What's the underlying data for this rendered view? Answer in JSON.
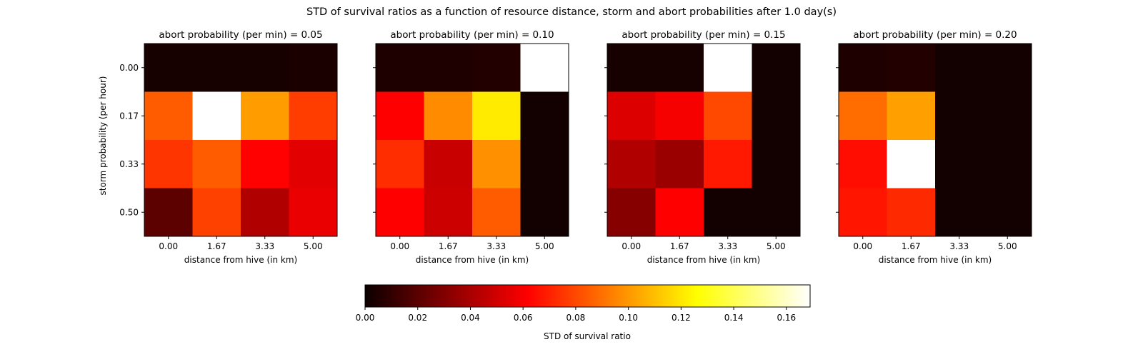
{
  "chart_data": {
    "type": "heatmap",
    "title": "STD of survival ratios as a function of resource distance, storm and abort probabilities after 1.0 day(s)",
    "xlabel": "distance from hive (in km)",
    "ylabel": "storm probability (per hour)",
    "x": [
      "0.00",
      "1.67",
      "3.33",
      "5.00"
    ],
    "y": [
      "0.00",
      "0.17",
      "0.33",
      "0.50"
    ],
    "colormap": "hot",
    "vmin": 0.0,
    "vmax": 0.169,
    "colorbar": {
      "label": "STD of survival ratio",
      "ticks": [
        "0.00",
        "0.02",
        "0.04",
        "0.06",
        "0.08",
        "0.10",
        "0.12",
        "0.14",
        "0.16"
      ],
      "tick_values": [
        0.0,
        0.02,
        0.04,
        0.06,
        0.08,
        0.1,
        0.12,
        0.14,
        0.16
      ]
    },
    "panels": [
      {
        "title": "abort probability (per min) = 0.05",
        "values": [
          [
            0.003,
            0.003,
            0.003,
            0.004
          ],
          [
            0.085,
            0.169,
            0.101,
            0.077
          ],
          [
            0.075,
            0.085,
            0.062,
            0.052
          ],
          [
            0.02,
            0.078,
            0.04,
            0.054
          ]
        ]
      },
      {
        "title": "abort probability (per min) = 0.10",
        "values": [
          [
            0.005,
            0.005,
            0.006,
            0.169
          ],
          [
            0.061,
            0.097,
            0.121,
            0.002
          ],
          [
            0.073,
            0.046,
            0.098,
            0.002
          ],
          [
            0.061,
            0.047,
            0.085,
            0.002
          ]
        ]
      },
      {
        "title": "abort probability (per min) = 0.15",
        "values": [
          [
            0.003,
            0.003,
            0.169,
            0.002
          ],
          [
            0.051,
            0.057,
            0.08,
            0.002
          ],
          [
            0.04,
            0.035,
            0.068,
            0.002
          ],
          [
            0.03,
            0.059,
            0.002,
            0.002
          ]
        ]
      },
      {
        "title": "abort probability (per min) = 0.20",
        "values": [
          [
            0.005,
            0.006,
            0.002,
            0.002
          ],
          [
            0.089,
            0.102,
            0.002,
            0.002
          ],
          [
            0.065,
            0.169,
            0.002,
            0.002
          ],
          [
            0.067,
            0.072,
            0.002,
            0.002
          ]
        ]
      }
    ]
  }
}
